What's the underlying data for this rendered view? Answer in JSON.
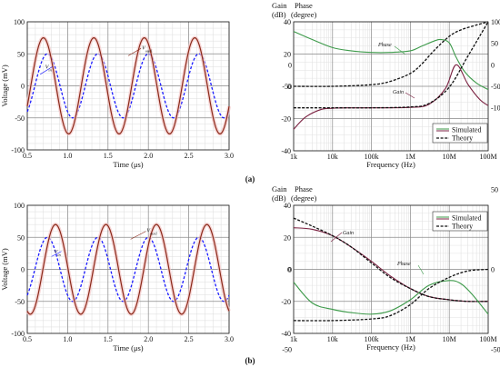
{
  "panel_labels": [
    "(a)",
    "(b)"
  ],
  "chart_data": [
    {
      "id": "a-time",
      "type": "line",
      "xlabel": "Time (μs)",
      "ylabel": "Voltage (mV)",
      "xlim": [
        0.5,
        3.0
      ],
      "ylim": [
        -100,
        100
      ],
      "xticks": [
        0.5,
        1.0,
        1.5,
        2.0,
        2.5,
        3.0
      ],
      "xtick_labels": [
        "0.5",
        "1.0",
        "1.5",
        "2.0",
        "2.5",
        "3.0"
      ],
      "yticks": [
        -100,
        -50,
        0,
        50,
        100
      ],
      "grid": true,
      "series": [
        {
          "name": "Vin",
          "label": "V",
          "label_sub": "in",
          "amplitude": 50,
          "period_us": 0.625,
          "peak_at_us": 0.75,
          "color": "#1a1aff",
          "style": "dashed"
        },
        {
          "name": "Vout1",
          "label": "V",
          "label_sub": "out1",
          "amplitude": 75,
          "period_us": 0.625,
          "peak_at_us": 0.7,
          "color": "#8b2a1a",
          "style": "solid"
        }
      ]
    },
    {
      "id": "a-bode",
      "type": "line",
      "xscale": "log",
      "xlabel": "Frequency (Hz)",
      "xlim": [
        1000,
        100000000
      ],
      "xticks": [
        1000,
        10000,
        100000,
        1000000,
        10000000,
        100000000
      ],
      "xtick_labels": [
        "1k",
        "10k",
        "100k",
        "1M",
        "10M",
        "100M"
      ],
      "ylabel_left": "Gain (dB)",
      "ylabel_right": "Phase (degree)",
      "yticks_left": [
        -40,
        -20,
        0,
        20,
        40
      ],
      "yticks_right": [
        -100,
        -50,
        0,
        50,
        100
      ],
      "tick_labels_inside": [
        "0",
        "-50"
      ],
      "grid": true,
      "legend": {
        "position": "bottom-right",
        "entries": [
          "Simulated",
          "Theory"
        ]
      },
      "annotations": [
        "Phase",
        "Gain"
      ],
      "series": [
        {
          "name": "Phase Simulated",
          "color": "#3d9a4a",
          "style": "solid",
          "x": [
            1000,
            3000,
            10000,
            30000,
            100000,
            300000,
            1000000,
            2000000,
            4000000,
            6000000,
            10000000,
            15000000,
            25000000,
            50000000,
            100000000
          ],
          "y": [
            34,
            29,
            24,
            22,
            21,
            21,
            22,
            25,
            28,
            29,
            27,
            18,
            9,
            2,
            -2
          ]
        },
        {
          "name": "Phase Theory",
          "color": "#111111",
          "style": "dashed",
          "x": [
            1000,
            10000,
            100000,
            300000,
            1000000,
            2000000,
            4000000,
            10000000,
            20000000,
            50000000,
            100000000
          ],
          "y": [
            0,
            0,
            1,
            3,
            8,
            14,
            22,
            31,
            35,
            38,
            40
          ]
        },
        {
          "name": "Gain Simulated",
          "color": "#7a2040",
          "style": "solid",
          "x": [
            1000,
            2000,
            5000,
            10000,
            30000,
            100000,
            1000000,
            3000000,
            8000000,
            15000000,
            30000000,
            60000000,
            100000000
          ],
          "y": [
            -150,
            -122,
            -104,
            -101,
            -100,
            -100,
            -99,
            -92,
            -55,
            0,
            -45,
            -80,
            -95
          ]
        },
        {
          "name": "Gain Theory",
          "color": "#111111",
          "style": "dashed",
          "x": [
            1000,
            10000,
            100000,
            1000000,
            3000000,
            10000000,
            30000000,
            100000000
          ],
          "y": [
            -100,
            -100,
            -100,
            -98,
            -90,
            -52,
            20,
            100
          ]
        }
      ]
    },
    {
      "id": "b-time",
      "type": "line",
      "xlabel": "Time (μs)",
      "ylabel": "Voltage (mV)",
      "xlim": [
        0.5,
        3.0
      ],
      "ylim": [
        -100,
        100
      ],
      "xticks": [
        0.5,
        1.0,
        1.5,
        2.0,
        2.5,
        3.0
      ],
      "xtick_labels": [
        "0.5",
        "1.0",
        "1.5",
        "2.0",
        "2.5",
        "3.0"
      ],
      "yticks": [
        -100,
        -50,
        0,
        50,
        100
      ],
      "grid": true,
      "series": [
        {
          "name": "Vin",
          "label": "V",
          "label_sub": "in",
          "amplitude": 50,
          "period_us": 0.625,
          "peak_at_us": 0.75,
          "color": "#1a1aff",
          "style": "dashed"
        },
        {
          "name": "Vout1",
          "label": "V",
          "label_sub": "out1",
          "amplitude": 70,
          "period_us": 0.625,
          "peak_at_us": 0.85,
          "color": "#8b2a1a",
          "style": "solid"
        }
      ]
    },
    {
      "id": "b-bode",
      "type": "line",
      "xscale": "log",
      "xlabel": "Frequency (Hz)",
      "xlim": [
        1000,
        100000000
      ],
      "xticks": [
        1000,
        10000,
        100000,
        1000000,
        10000000,
        100000000
      ],
      "xtick_labels": [
        "1k",
        "10k",
        "100k",
        "1M",
        "10M",
        "100M"
      ],
      "ylabel_left": "Gain (dB)",
      "ylabel_right": "Phase (degree)",
      "yticks_left": [
        -40,
        -20,
        0,
        20,
        40
      ],
      "yticks_right": [
        -50,
        0,
        50
      ],
      "tick_labels_inside": [
        "0",
        "-50"
      ],
      "grid": true,
      "legend": {
        "position": "top-right",
        "entries": [
          "Simulated",
          "Theory"
        ]
      },
      "annotations": [
        "Gain",
        "Phase"
      ],
      "series": [
        {
          "name": "Gain Simulated",
          "color": "#7a2040",
          "style": "solid",
          "x": [
            1000,
            3000,
            10000,
            30000,
            100000,
            300000,
            1000000,
            3000000,
            10000000,
            30000000,
            100000000
          ],
          "y": [
            26,
            25,
            21,
            14,
            5,
            -4,
            -12,
            -17,
            -19,
            -20,
            -20
          ]
        },
        {
          "name": "Gain Theory",
          "color": "#111111",
          "style": "dashed",
          "x": [
            1000,
            3000,
            10000,
            30000,
            100000,
            300000,
            1000000,
            3000000,
            10000000,
            30000000,
            100000000
          ],
          "y": [
            32,
            27,
            21,
            14,
            4,
            -5,
            -12,
            -17,
            -19,
            -20,
            -20
          ]
        },
        {
          "name": "Phase Simulated",
          "color": "#3d9a4a",
          "style": "solid",
          "x": [
            1000,
            3000,
            10000,
            30000,
            100000,
            300000,
            1000000,
            3000000,
            10000000,
            20000000,
            40000000,
            100000000
          ],
          "y": [
            -8,
            -21,
            -25,
            -27,
            -28,
            -26,
            -19,
            -10,
            -7,
            -9,
            -16,
            -28
          ]
        },
        {
          "name": "Phase Theory",
          "color": "#111111",
          "style": "dashed",
          "x": [
            1000,
            10000,
            100000,
            300000,
            1000000,
            3000000,
            10000000,
            30000000,
            100000000
          ],
          "y": [
            -32,
            -32,
            -31,
            -29,
            -22,
            -12,
            -5,
            -1,
            0
          ]
        }
      ]
    }
  ]
}
